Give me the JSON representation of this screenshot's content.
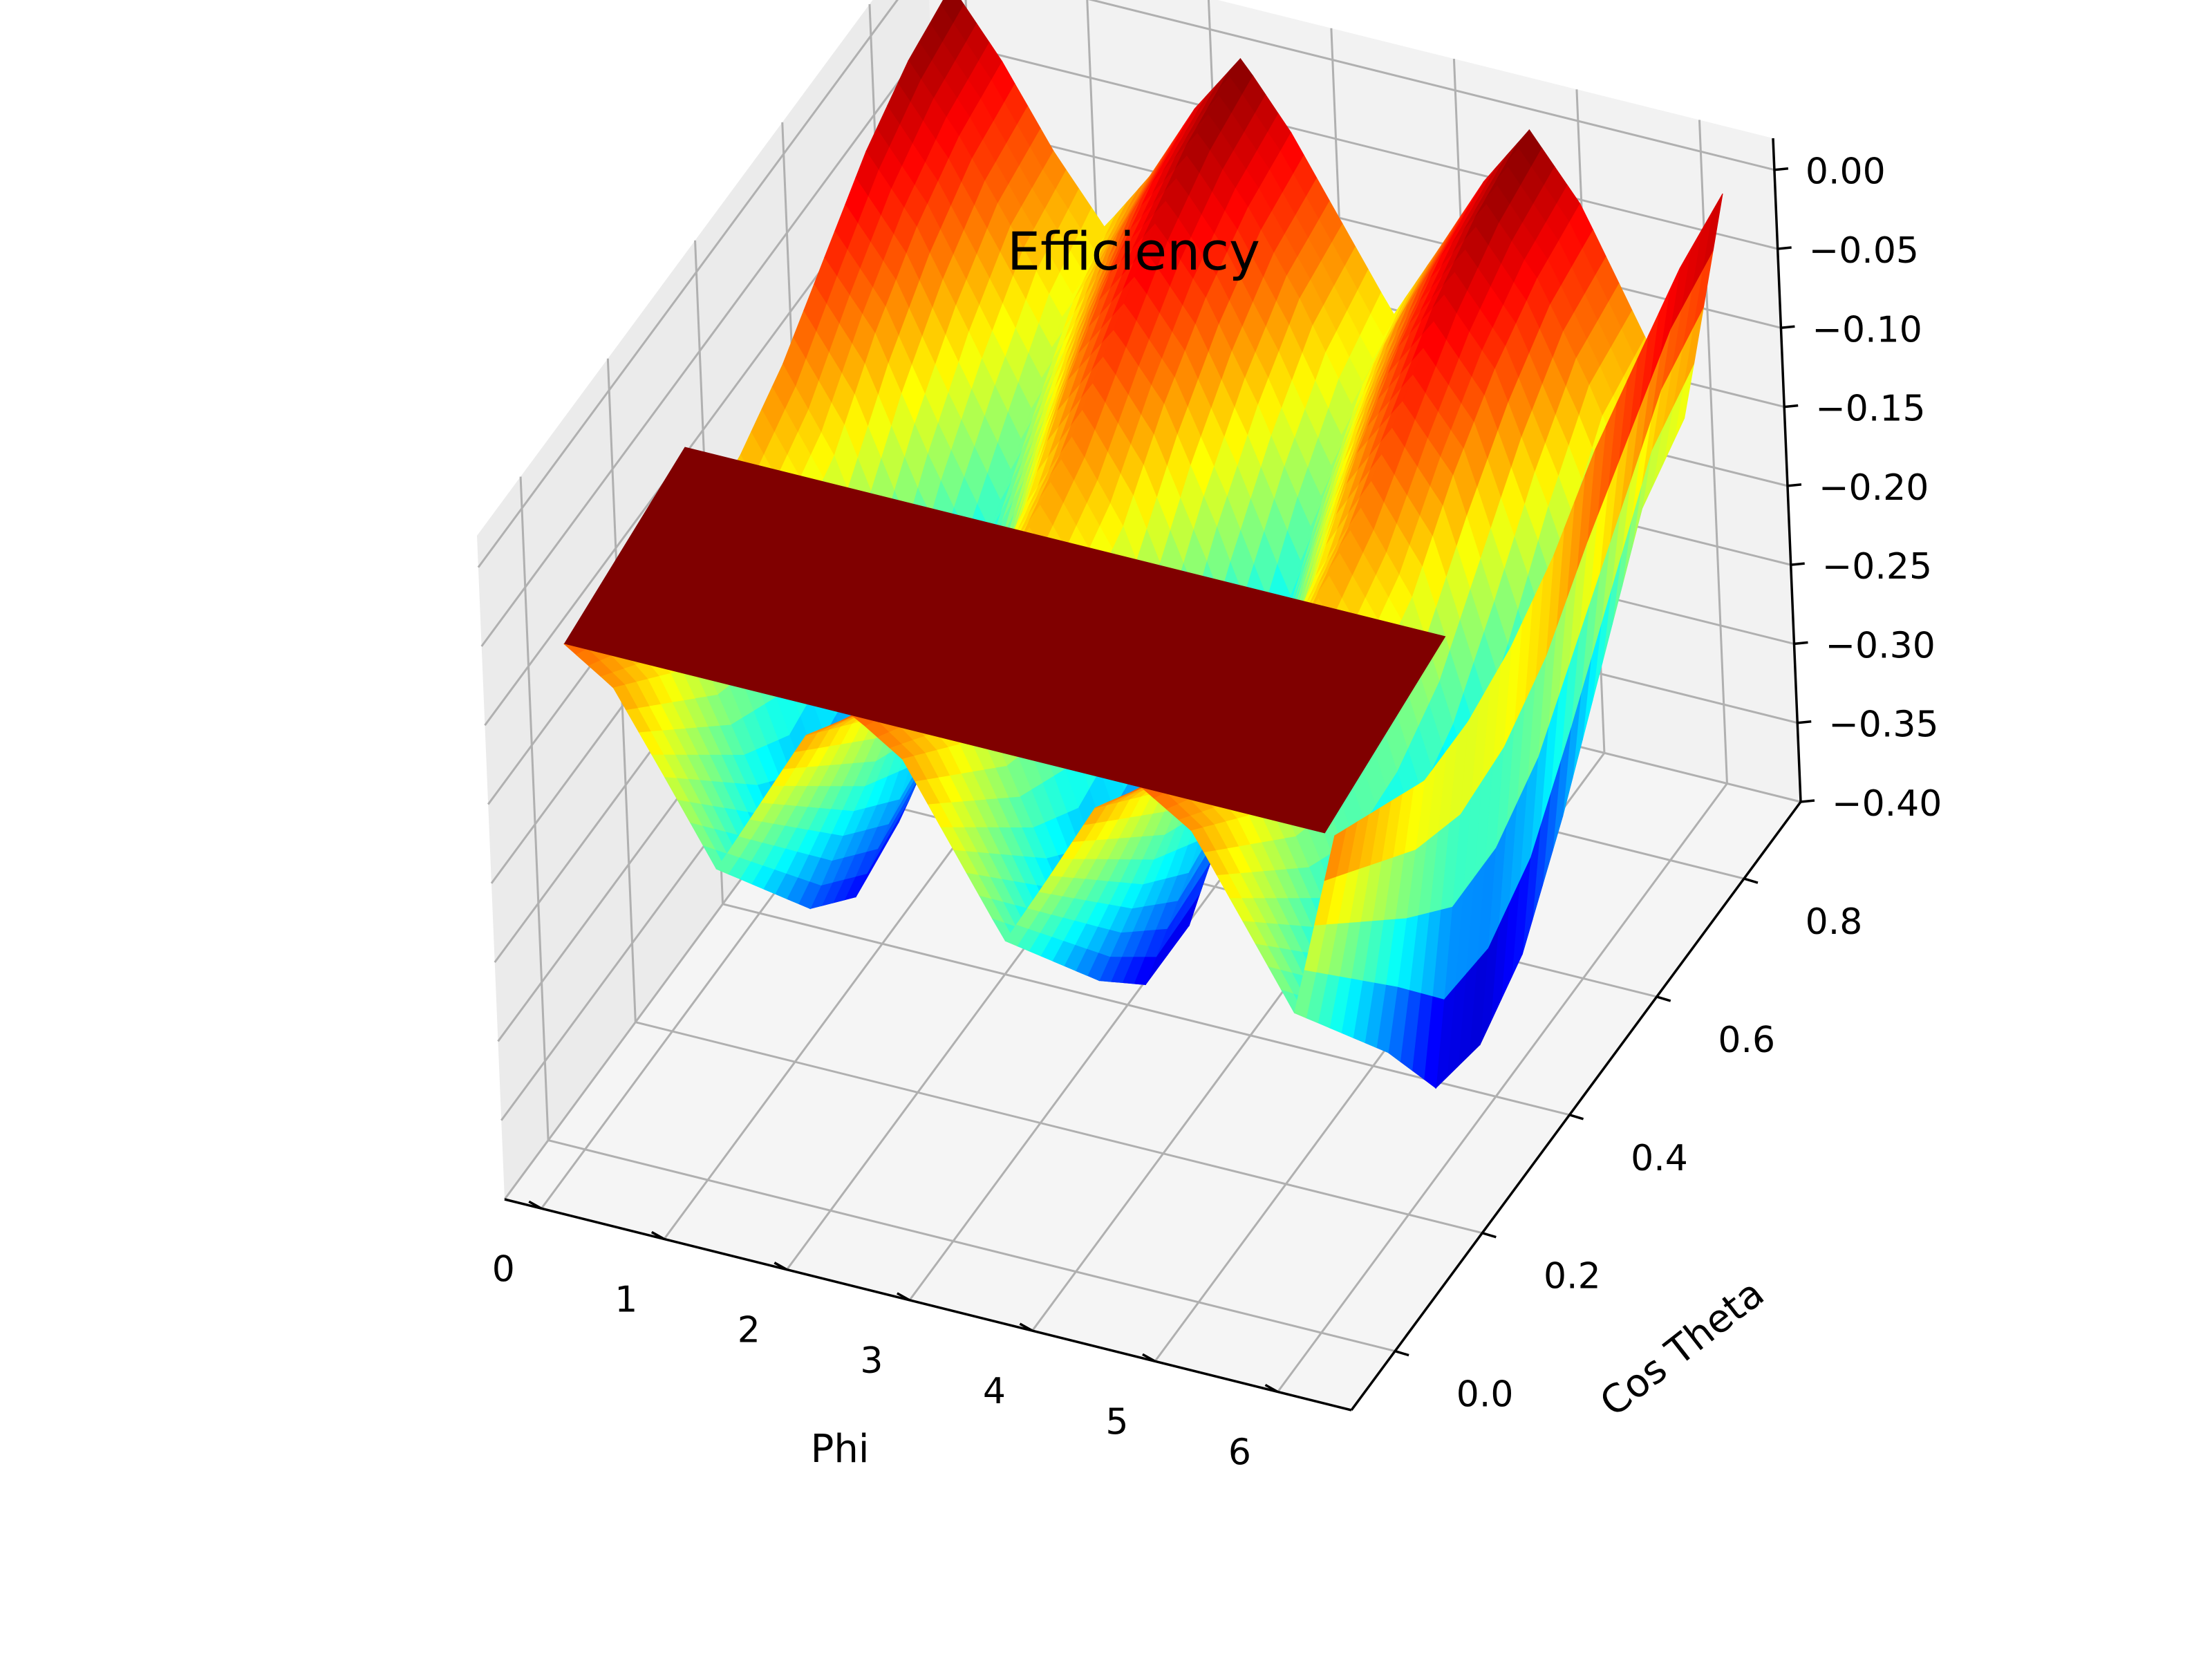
{
  "chart_data": {
    "type": "surface3d",
    "title": "Efficiency",
    "xlabel": "Phi",
    "ylabel": "Cos Theta",
    "zlabel": "",
    "xlim": [
      -0.3,
      6.6
    ],
    "ylim": [
      -0.1,
      0.93
    ],
    "zlim": [
      -0.4,
      0.02
    ],
    "x_ticks": [
      "0",
      "1",
      "2",
      "3",
      "4",
      "5",
      "6"
    ],
    "y_ticks": [
      "0.0",
      "0.2",
      "0.4",
      "0.6",
      "0.8"
    ],
    "z_ticks": [
      "0.00",
      "−0.05",
      "−0.10",
      "−0.15",
      "−0.20",
      "−0.25",
      "−0.30",
      "−0.35",
      "−0.40"
    ],
    "x_tick_values": [
      0,
      1,
      2,
      3,
      4,
      5,
      6
    ],
    "y_tick_values": [
      0.0,
      0.2,
      0.4,
      0.6,
      0.8
    ],
    "z_tick_values": [
      0.0,
      -0.05,
      -0.1,
      -0.15,
      -0.2,
      -0.25,
      -0.3,
      -0.35,
      -0.4
    ],
    "colormap": "jet",
    "grid": true,
    "plateau": {
      "value": -0.08,
      "phi_range": [
        0,
        6.2
      ],
      "cos_theta_range": [
        0,
        0.1
      ],
      "color": "#800000"
    },
    "surface": {
      "phi": [
        0.0,
        0.39,
        0.79,
        1.18,
        1.57,
        1.96,
        2.36,
        2.75,
        3.14,
        3.53,
        3.93,
        4.32,
        4.71,
        5.11,
        5.5,
        5.89,
        6.28
      ],
      "cos_theta": [
        0.0,
        0.1,
        0.2,
        0.3,
        0.4,
        0.5,
        0.6,
        0.7,
        0.8,
        0.9
      ],
      "efficiency": [
        [
          -0.08,
          -0.1,
          -0.15,
          -0.2,
          -0.15,
          -0.1,
          -0.08,
          -0.1,
          -0.15,
          -0.2,
          -0.15,
          -0.1,
          -0.08,
          -0.1,
          -0.15,
          -0.2,
          -0.08
        ],
        [
          -0.1,
          -0.13,
          -0.19,
          -0.25,
          -0.19,
          -0.13,
          -0.1,
          -0.13,
          -0.19,
          -0.25,
          -0.19,
          -0.13,
          -0.1,
          -0.13,
          -0.19,
          -0.25,
          -0.1
        ],
        [
          -0.12,
          -0.16,
          -0.23,
          -0.3,
          -0.23,
          -0.16,
          -0.12,
          -0.16,
          -0.23,
          -0.3,
          -0.23,
          -0.16,
          -0.12,
          -0.16,
          -0.23,
          -0.3,
          -0.12
        ],
        [
          -0.12,
          -0.17,
          -0.26,
          -0.33,
          -0.26,
          -0.17,
          -0.12,
          -0.17,
          -0.26,
          -0.34,
          -0.26,
          -0.17,
          -0.12,
          -0.17,
          -0.26,
          -0.36,
          -0.12
        ],
        [
          -0.11,
          -0.16,
          -0.25,
          -0.32,
          -0.25,
          -0.16,
          -0.11,
          -0.16,
          -0.25,
          -0.34,
          -0.25,
          -0.16,
          -0.11,
          -0.16,
          -0.26,
          -0.37,
          -0.11
        ],
        [
          -0.09,
          -0.14,
          -0.22,
          -0.28,
          -0.22,
          -0.14,
          -0.09,
          -0.14,
          -0.22,
          -0.3,
          -0.22,
          -0.14,
          -0.09,
          -0.14,
          -0.24,
          -0.35,
          -0.09
        ],
        [
          -0.06,
          -0.1,
          -0.17,
          -0.23,
          -0.17,
          -0.1,
          -0.06,
          -0.1,
          -0.17,
          -0.25,
          -0.17,
          -0.1,
          -0.06,
          -0.1,
          -0.2,
          -0.3,
          -0.06
        ],
        [
          -0.03,
          -0.07,
          -0.13,
          -0.19,
          -0.13,
          -0.07,
          -0.03,
          -0.07,
          -0.13,
          -0.2,
          -0.13,
          -0.07,
          -0.03,
          -0.07,
          -0.15,
          -0.24,
          -0.04
        ],
        [
          -0.01,
          -0.05,
          -0.1,
          -0.15,
          -0.1,
          -0.05,
          -0.01,
          -0.05,
          -0.1,
          -0.16,
          -0.1,
          -0.05,
          -0.01,
          -0.05,
          -0.11,
          -0.18,
          -0.02
        ],
        [
          0.0,
          -0.04,
          -0.09,
          -0.13,
          -0.09,
          -0.04,
          0.0,
          -0.04,
          -0.09,
          -0.14,
          -0.09,
          -0.04,
          0.0,
          -0.04,
          -0.1,
          -0.16,
          -0.01
        ]
      ]
    }
  }
}
